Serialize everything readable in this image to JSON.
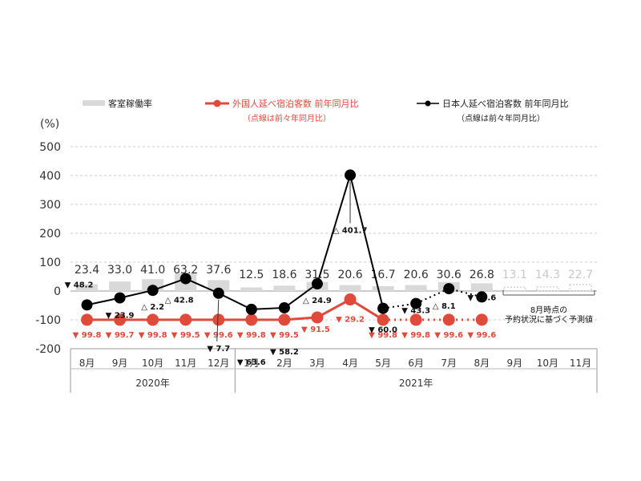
{
  "chart_data": {
    "type": "bar",
    "yunit": "(%)",
    "ylim": [
      -200,
      500
    ],
    "yticks": [
      500,
      400,
      300,
      200,
      100,
      0,
      -100,
      -200
    ],
    "grid": true,
    "months": [
      "8月",
      "9月",
      "10月",
      "11月",
      "12月",
      "1月",
      "2月",
      "3月",
      "4月",
      "5月",
      "6月",
      "7月",
      "8月",
      "9月",
      "10月",
      "11月"
    ],
    "year_groups": [
      {
        "label": "2020年",
        "start": 0,
        "end": 4
      },
      {
        "label": "2021年",
        "start": 5,
        "end": 15
      }
    ],
    "legend": {
      "occupancy": "客室稼働率",
      "foreign": "外国人延べ宿泊客数 前年同月比",
      "foreign_note": "（点線は前々年同月比）",
      "japanese": "日本人延べ宿泊客数 前年同月比",
      "japanese_note": "（点線は前々年同月比）"
    },
    "series": [
      {
        "key": "occupancy",
        "values": [
          23.4,
          33.0,
          41.0,
          63.2,
          37.6,
          12.5,
          18.6,
          31.5,
          20.6,
          16.7,
          20.6,
          30.6,
          26.8,
          13.1,
          14.3,
          22.7
        ],
        "labels": [
          "23.4",
          "33.0",
          "41.0",
          "63.2",
          "37.6",
          "12.5",
          "18.6",
          "31.5",
          "20.6",
          "16.7",
          "20.6",
          "30.6",
          "26.8",
          "13.1",
          "14.3",
          "22.7"
        ],
        "forecast_from": 13
      },
      {
        "key": "foreign",
        "solid": [
          -99.8,
          -99.7,
          -99.8,
          -99.5,
          -99.6,
          -99.8,
          -99.5,
          -91.5,
          -29.2,
          -99.8,
          null,
          null,
          null
        ],
        "dotted": [
          null,
          null,
          null,
          null,
          null,
          null,
          null,
          null,
          null,
          -99.8,
          -99.8,
          -99.6,
          -99.6
        ],
        "labels": [
          {
            "i": 0,
            "mark": "▼",
            "text": "99.8"
          },
          {
            "i": 1,
            "mark": "▼",
            "text": "99.7"
          },
          {
            "i": 2,
            "mark": "▼",
            "text": "99.8"
          },
          {
            "i": 3,
            "mark": "▼",
            "text": "99.5"
          },
          {
            "i": 4,
            "mark": "▼",
            "text": "99.6"
          },
          {
            "i": 5,
            "mark": "▼",
            "text": "99.8"
          },
          {
            "i": 6,
            "mark": "▼",
            "text": "99.5"
          },
          {
            "i": 7,
            "mark": "▼",
            "text": "91.5"
          },
          {
            "i": 8,
            "mark": "▼",
            "text": "29.2"
          },
          {
            "i": 9,
            "mark": "▼",
            "text": "99.8"
          },
          {
            "i": 10,
            "mark": "▼",
            "text": "99.8"
          },
          {
            "i": 11,
            "mark": "▼",
            "text": "99.6"
          },
          {
            "i": 12,
            "mark": "▼",
            "text": "99.6"
          }
        ]
      },
      {
        "key": "japanese",
        "solid": [
          -48.2,
          -23.9,
          2.2,
          42.8,
          -7.7,
          -63.6,
          -58.2,
          24.9,
          401.7,
          -60.0,
          null,
          null,
          null
        ],
        "dotted": [
          null,
          null,
          null,
          null,
          null,
          null,
          null,
          null,
          null,
          -60.0,
          -43.3,
          8.1,
          -20.6
        ],
        "labels": [
          {
            "i": 0,
            "mark": "▼",
            "text": "48.2"
          },
          {
            "i": 1,
            "mark": "▼",
            "text": "23.9"
          },
          {
            "i": 2,
            "mark": "△",
            "text": "2.2"
          },
          {
            "i": 3,
            "mark": "△",
            "text": "42.8"
          },
          {
            "i": 4,
            "mark": "▼",
            "text": "7.7"
          },
          {
            "i": 5,
            "mark": "▼",
            "text": "63.6"
          },
          {
            "i": 6,
            "mark": "▼",
            "text": "58.2"
          },
          {
            "i": 7,
            "mark": "△",
            "text": "24.9"
          },
          {
            "i": 8,
            "mark": "△",
            "text": "401.7"
          },
          {
            "i": 9,
            "mark": "▼",
            "text": "60.0"
          },
          {
            "i": 10,
            "mark": "▼",
            "text": "43.3"
          },
          {
            "i": 11,
            "mark": "△",
            "text": "8.1"
          },
          {
            "i": 12,
            "mark": "▼",
            "text": "20.6"
          }
        ]
      }
    ],
    "forecast_note": [
      "8月時点の",
      "予約状況に基づく予測値"
    ],
    "colors": {
      "occupancy": "#d9d9d9",
      "foreign": "#e04a3a",
      "japanese": "#000000",
      "grid": "#cccccc"
    }
  }
}
